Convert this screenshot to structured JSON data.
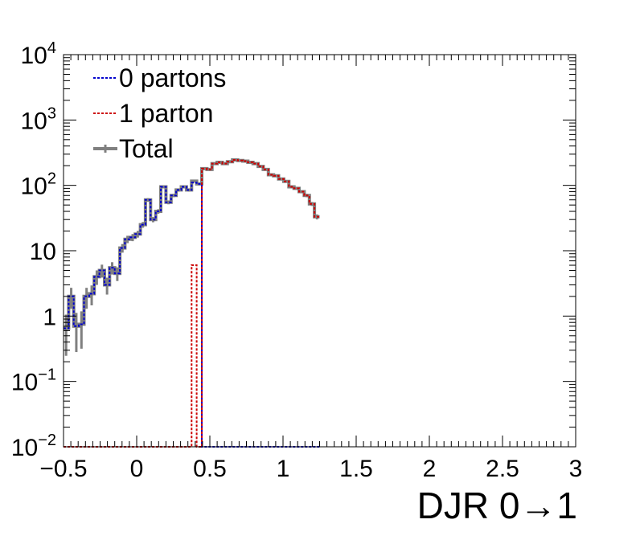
{
  "chart_data": {
    "type": "histogram",
    "xlabel": "DJR 0→1",
    "ylabel": "",
    "xlim": [
      -0.5,
      3.0
    ],
    "ylim": [
      0.01,
      10000
    ],
    "log_y": true,
    "grid": false,
    "legend_position": "top-left",
    "x_ticks": [
      "−0.5",
      "0",
      "0.5",
      "1",
      "1.5",
      "2",
      "2.5",
      "3"
    ],
    "y_ticks": [
      {
        "base": "10",
        "exp": "−2"
      },
      {
        "base": "10",
        "exp": "−1"
      },
      {
        "base": "1",
        "exp": ""
      },
      {
        "base": "10",
        "exp": ""
      },
      {
        "base": "10",
        "exp": "2"
      },
      {
        "base": "10",
        "exp": "3"
      },
      {
        "base": "10",
        "exp": "4"
      }
    ],
    "bin_edges_start": -0.5,
    "bin_width": 0.035,
    "series": [
      {
        "name": "0 partons",
        "color": "#0000cc",
        "style": "dotted",
        "values": [
          0.65,
          2.0,
          0.7,
          0.75,
          2.0,
          2.2,
          4.0,
          5.0,
          3.0,
          5.5,
          4.5,
          11,
          15,
          16,
          18,
          25,
          60,
          30,
          40,
          95,
          55,
          70,
          85,
          95,
          85,
          110,
          105,
          0.01,
          0.01,
          0.01,
          0.01,
          0.01,
          0.01,
          0.01,
          0.01,
          0.01,
          0.01,
          0.01,
          0.01,
          0.01,
          0.01,
          0.01,
          0.01,
          0.01,
          0.01,
          0.01,
          0.01,
          0.01,
          0.01,
          0.01
        ]
      },
      {
        "name": "1 parton",
        "color": "#cc0000",
        "style": "dotted",
        "values": [
          0.01,
          0.01,
          0.01,
          0.01,
          0.01,
          0.01,
          0.01,
          0.01,
          0.01,
          0.01,
          0.01,
          0.01,
          0.01,
          0.01,
          0.01,
          0.01,
          0.01,
          0.01,
          0.01,
          0.01,
          0.01,
          0.01,
          0.01,
          0.01,
          0.01,
          6.0,
          0.01,
          180,
          175,
          215,
          225,
          215,
          230,
          245,
          240,
          235,
          225,
          215,
          195,
          175,
          145,
          140,
          125,
          115,
          95,
          90,
          80,
          70,
          52,
          33
        ]
      },
      {
        "name": "Total",
        "color": "#808080",
        "style": "solid",
        "values": [
          0.65,
          2.0,
          0.7,
          0.75,
          2.0,
          2.2,
          4.0,
          5.0,
          3.0,
          5.5,
          4.5,
          11,
          15,
          16,
          18,
          25,
          60,
          30,
          40,
          95,
          55,
          70,
          85,
          95,
          85,
          116,
          105,
          180,
          175,
          215,
          225,
          215,
          230,
          245,
          240,
          235,
          225,
          215,
          195,
          175,
          145,
          140,
          125,
          115,
          95,
          90,
          80,
          70,
          52,
          33
        ]
      }
    ]
  }
}
